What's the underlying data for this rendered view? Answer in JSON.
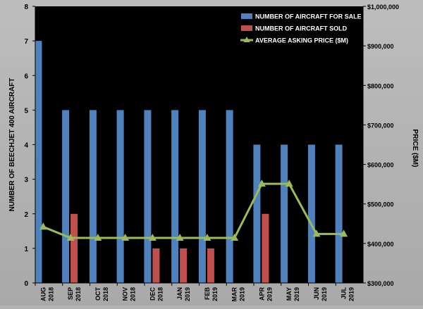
{
  "chart_data": {
    "type": "bar",
    "categories": [
      [
        "AUG",
        "2018"
      ],
      [
        "SEP",
        "2018"
      ],
      [
        "OCT",
        "2018"
      ],
      [
        "NOV",
        "2018"
      ],
      [
        "DEC",
        "2018"
      ],
      [
        "JAN",
        "2019"
      ],
      [
        "FEB",
        "2019"
      ],
      [
        "MAR",
        "2019"
      ],
      [
        "APR",
        "2019"
      ],
      [
        "MAY",
        "2019"
      ],
      [
        "JUN",
        "2019"
      ],
      [
        "JUL",
        "2019"
      ]
    ],
    "series": [
      {
        "name": "NUMBER OF AIRCRAFT FOR SALE",
        "kind": "bar",
        "axis": "left",
        "color": "#4f81bd",
        "values": [
          7,
          5,
          5,
          5,
          5,
          5,
          5,
          5,
          4,
          4,
          4,
          4
        ]
      },
      {
        "name": "NUMBER OF AIRCRAFT SOLD",
        "kind": "bar",
        "axis": "left",
        "color": "#c0504d",
        "values": [
          0,
          2,
          0,
          0,
          1,
          1,
          1,
          0,
          2,
          0,
          0,
          0
        ]
      },
      {
        "name": "AVERAGE ASKING PRICE ($M)",
        "kind": "line",
        "axis": "right",
        "color": "#9bbb59",
        "values": [
          442000,
          414000,
          414000,
          414000,
          414000,
          414000,
          414000,
          414000,
          551000,
          551000,
          424000,
          424000
        ]
      }
    ],
    "ylabel": "NUMBER OF BEECHJET 400 AIRCRAFT",
    "ylabel_right": "PRICE ($M)",
    "xlabel": "",
    "ylim": [
      0,
      8
    ],
    "y_ticks": [
      "0",
      "1",
      "2",
      "3",
      "4",
      "5",
      "6",
      "7",
      "8"
    ],
    "ylim_right": [
      300000,
      1000000
    ],
    "y_ticks_right": [
      "$300,000",
      "$400,000",
      "$500,000",
      "$600,000",
      "$700,000",
      "$800,000",
      "$900,000",
      "$1,000,000"
    ],
    "grid": false,
    "legend_position": "top-right",
    "plot_background": "#000000"
  }
}
